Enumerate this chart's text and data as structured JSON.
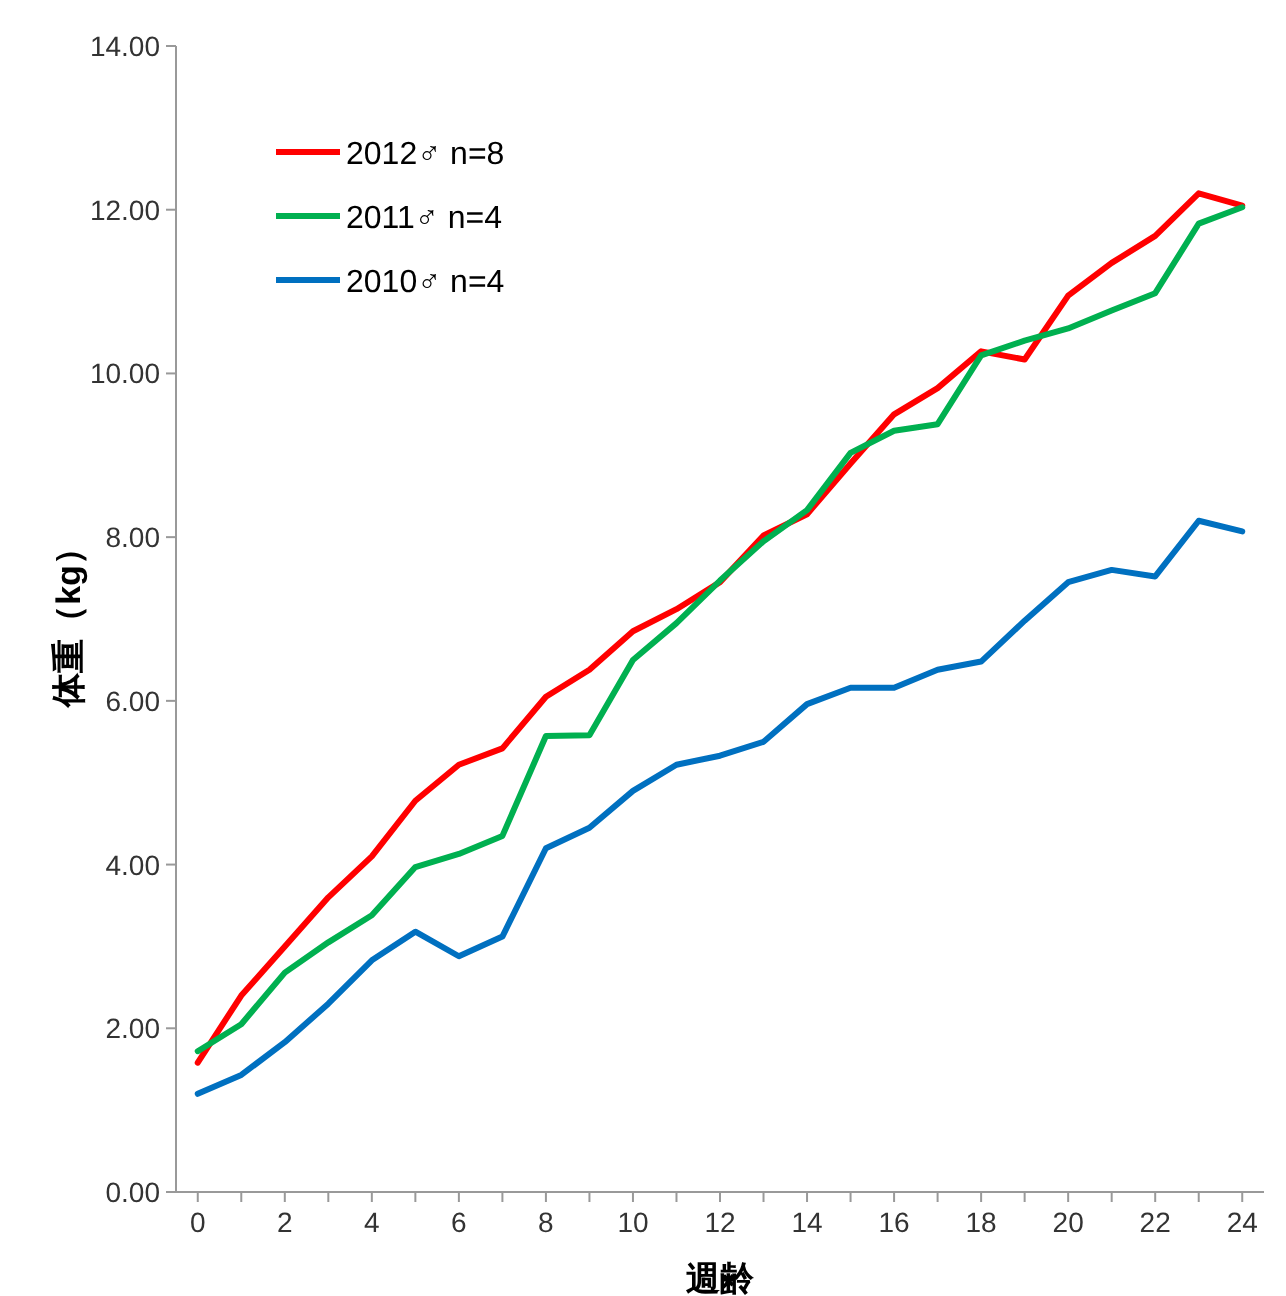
{
  "chart_data": {
    "type": "line",
    "xlabel": "週齢",
    "ylabel": "体重（kg）",
    "x": [
      0,
      1,
      2,
      3,
      4,
      5,
      6,
      7,
      8,
      9,
      10,
      11,
      12,
      13,
      14,
      15,
      16,
      17,
      18,
      19,
      20,
      21,
      22,
      23,
      24
    ],
    "xlim": [
      -0.5,
      24.5
    ],
    "xticks": [
      0,
      {
        "value": 1,
        "label": null
      },
      2,
      {
        "value": 3,
        "label": null
      },
      4,
      {
        "value": 5,
        "label": null
      },
      6,
      {
        "value": 7,
        "label": null
      },
      8,
      {
        "value": 9,
        "label": null
      },
      10,
      {
        "value": 11,
        "label": null
      },
      12,
      {
        "value": 13,
        "label": null
      },
      14,
      {
        "value": 15,
        "label": null
      },
      16,
      {
        "value": 17,
        "label": null
      },
      18,
      {
        "value": 19,
        "label": null
      },
      20,
      {
        "value": 21,
        "label": null
      },
      22,
      {
        "value": 23,
        "label": null
      },
      24
    ],
    "ylim": [
      0,
      14
    ],
    "yticks": [
      {
        "value": 0,
        "label": "0.00"
      },
      {
        "value": 2,
        "label": "2.00"
      },
      {
        "value": 4,
        "label": "4.00"
      },
      {
        "value": 6,
        "label": "6.00"
      },
      {
        "value": 8,
        "label": "8.00"
      },
      {
        "value": 10,
        "label": "10.00"
      },
      {
        "value": 12,
        "label": "12.00"
      },
      {
        "value": 14,
        "label": "14.00"
      }
    ],
    "grid": false,
    "legend": "top left",
    "marker": "none",
    "line_style": "solid",
    "series": [
      {
        "name": "2012♂ n=8",
        "color": "#ff0000",
        "values": [
          1.58,
          2.4,
          3.0,
          3.6,
          4.1,
          4.78,
          5.22,
          5.42,
          6.05,
          6.38,
          6.85,
          7.12,
          7.45,
          8.02,
          8.28,
          8.9,
          9.5,
          9.82,
          10.27,
          10.17,
          10.95,
          11.35,
          11.68,
          12.2,
          12.05
        ]
      },
      {
        "name": "2011♂ n=4",
        "color": "#00b050",
        "values": [
          1.72,
          2.05,
          2.68,
          3.05,
          3.38,
          3.97,
          4.13,
          4.35,
          5.57,
          5.58,
          6.5,
          6.95,
          7.47,
          7.95,
          8.33,
          9.03,
          9.3,
          9.38,
          10.22,
          10.4,
          10.55,
          10.77,
          10.98,
          11.83,
          12.03
        ]
      },
      {
        "name": "2010♂ n=4",
        "color": "#0070c0",
        "values": [
          1.2,
          1.43,
          1.83,
          2.3,
          2.83,
          3.18,
          2.88,
          3.12,
          4.2,
          4.45,
          4.9,
          5.22,
          5.33,
          5.5,
          5.96,
          6.16,
          6.16,
          6.38,
          6.48,
          6.98,
          7.45,
          7.6,
          7.52,
          8.2,
          8.07
        ]
      }
    ]
  }
}
